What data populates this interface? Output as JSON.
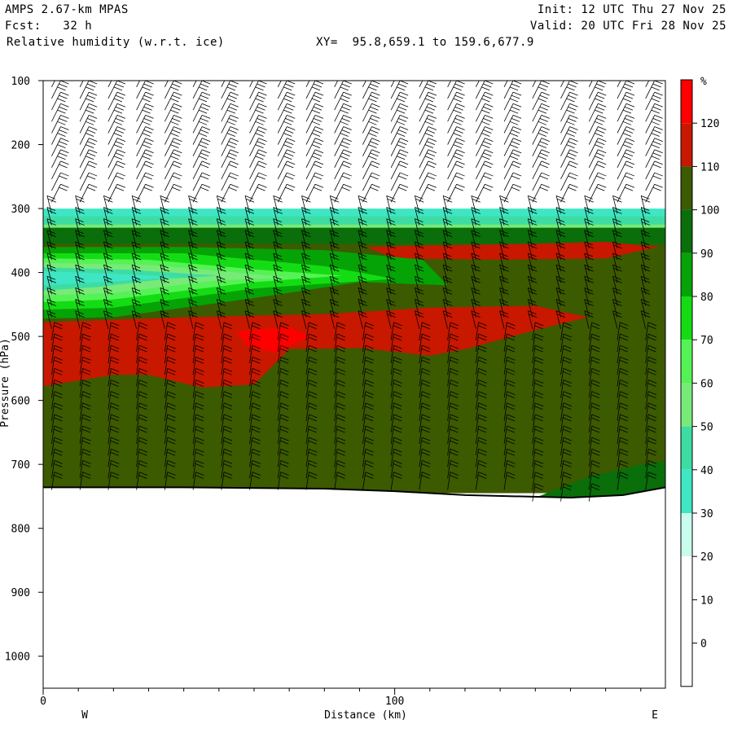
{
  "header": {
    "model": "AMPS 2.67-km MPAS",
    "fcst": "Fcst:   32 h",
    "field": "Relative humidity (w.r.t. ice)",
    "xy": "XY=  95.8,659.1 to 159.6,677.9",
    "init": "Init: 12 UTC Thu 27 Nov 25",
    "valid": "Valid: 20 UTC Fri 28 Nov 25"
  },
  "chart_data": {
    "type": "cross-section",
    "xlabel": "Distance (km)",
    "ylabel": "Pressure (hPa)",
    "x_ticks": [
      "0",
      "100"
    ],
    "xlim": [
      0,
      177
    ],
    "y_ticks": [
      "100",
      "200",
      "300",
      "400",
      "500",
      "600",
      "700",
      "800",
      "900",
      "1000"
    ],
    "ylim": [
      100,
      1050
    ],
    "direction_labels": {
      "left": "W",
      "right": "E"
    },
    "colorbar": {
      "unit": "%",
      "labels": [
        "120",
        "110",
        "100",
        "90",
        "80",
        "70",
        "60",
        "50",
        "40",
        "30",
        "20",
        "10",
        "0"
      ],
      "levels": [
        130,
        120,
        110,
        100,
        90,
        80,
        70,
        60,
        50,
        40,
        30,
        20,
        10,
        0,
        -10
      ],
      "colors": [
        "#ff0000",
        "#c81800",
        "#3c5a00",
        "#0a6e0a",
        "#06a306",
        "#14dc14",
        "#55f255",
        "#78ea78",
        "#3ddca3",
        "#3ee6c4",
        "#c8fcec",
        "#ffffff",
        "#ffffff",
        "#ffffff"
      ]
    },
    "terrain_pressure_hpa": [
      [
        0,
        736
      ],
      [
        40,
        736
      ],
      [
        80,
        738
      ],
      [
        100,
        742
      ],
      [
        120,
        748
      ],
      [
        150,
        752
      ],
      [
        165,
        748
      ],
      [
        177,
        736
      ]
    ],
    "rh_regions": [
      {
        "level": "30-40",
        "rh": 35,
        "outline": [
          [
            0,
            300
          ],
          [
            177,
            300
          ],
          [
            177,
            340
          ],
          [
            0,
            340
          ]
        ]
      },
      {
        "level": "40-50",
        "rh": 45,
        "outline": [
          [
            0,
            312
          ],
          [
            177,
            312
          ],
          [
            177,
            345
          ],
          [
            0,
            345
          ]
        ]
      },
      {
        "level": "50-60",
        "rh": 55,
        "outline": [
          [
            0,
            325
          ],
          [
            177,
            325
          ],
          [
            177,
            350
          ],
          [
            0,
            350
          ]
        ]
      },
      {
        "level": "90-100",
        "rh": 95,
        "outline": [
          [
            0,
            330
          ],
          [
            177,
            330
          ],
          [
            177,
            360
          ],
          [
            0,
            360
          ]
        ]
      },
      {
        "level": "100-110",
        "rh": 105,
        "outline": [
          [
            0,
            355
          ],
          [
            177,
            355
          ],
          [
            177,
            745
          ],
          [
            0,
            745
          ]
        ]
      },
      {
        "level": "110-120 upper",
        "rh": 115,
        "outline": [
          [
            92,
            360
          ],
          [
            140,
            355
          ],
          [
            160,
            352
          ],
          [
            175,
            360
          ],
          [
            160,
            378
          ],
          [
            130,
            380
          ],
          [
            100,
            378
          ]
        ]
      },
      {
        "level": "110-120 mid",
        "rh": 115,
        "outline": [
          [
            0,
            478
          ],
          [
            40,
            470
          ],
          [
            80,
            465
          ],
          [
            110,
            455
          ],
          [
            140,
            452
          ],
          [
            155,
            470
          ],
          [
            140,
            490
          ],
          [
            120,
            520
          ],
          [
            110,
            530
          ],
          [
            90,
            518
          ],
          [
            70,
            520
          ],
          [
            60,
            575
          ],
          [
            45,
            580
          ],
          [
            30,
            560
          ],
          [
            20,
            560
          ],
          [
            0,
            578
          ]
        ]
      },
      {
        "level": "120-130",
        "rh": 125,
        "outline": [
          [
            55,
            492
          ],
          [
            70,
            485
          ],
          [
            76,
            500
          ],
          [
            66,
            525
          ],
          [
            58,
            515
          ]
        ]
      },
      {
        "level": "90-100 low",
        "rh": 95,
        "outline": [
          [
            140,
            752
          ],
          [
            155,
            720
          ],
          [
            170,
            700
          ],
          [
            177,
            695
          ],
          [
            177,
            752
          ]
        ]
      },
      {
        "level": "80-90 tongue",
        "rh": 85,
        "outline": [
          [
            0,
            360
          ],
          [
            40,
            360
          ],
          [
            80,
            365
          ],
          [
            108,
            380
          ],
          [
            115,
            420
          ],
          [
            90,
            415
          ],
          [
            60,
            440
          ],
          [
            20,
            470
          ],
          [
            0,
            472
          ]
        ]
      },
      {
        "level": "70-80 tongue",
        "rh": 75,
        "outline": [
          [
            0,
            370
          ],
          [
            40,
            370
          ],
          [
            80,
            390
          ],
          [
            100,
            410
          ],
          [
            60,
            425
          ],
          [
            20,
            455
          ],
          [
            0,
            458
          ]
        ]
      },
      {
        "level": "60-70 tongue",
        "rh": 65,
        "outline": [
          [
            0,
            378
          ],
          [
            30,
            380
          ],
          [
            60,
            395
          ],
          [
            85,
            405
          ],
          [
            60,
            415
          ],
          [
            20,
            442
          ],
          [
            0,
            446
          ]
        ]
      },
      {
        "level": "50-60 tongue",
        "rh": 55,
        "outline": [
          [
            0,
            385
          ],
          [
            30,
            388
          ],
          [
            55,
            400
          ],
          [
            70,
            408
          ],
          [
            50,
            412
          ],
          [
            20,
            432
          ],
          [
            0,
            436
          ]
        ]
      },
      {
        "level": "40-50 tongue",
        "rh": 45,
        "outline": [
          [
            0,
            392
          ],
          [
            25,
            396
          ],
          [
            50,
            405
          ],
          [
            35,
            410
          ],
          [
            15,
            423
          ],
          [
            0,
            428
          ]
        ]
      },
      {
        "level": "30-40 tongue",
        "rh": 35,
        "outline": [
          [
            0,
            398
          ],
          [
            20,
            402
          ],
          [
            38,
            407
          ],
          [
            20,
            414
          ],
          [
            0,
            420
          ]
        ]
      }
    ]
  }
}
